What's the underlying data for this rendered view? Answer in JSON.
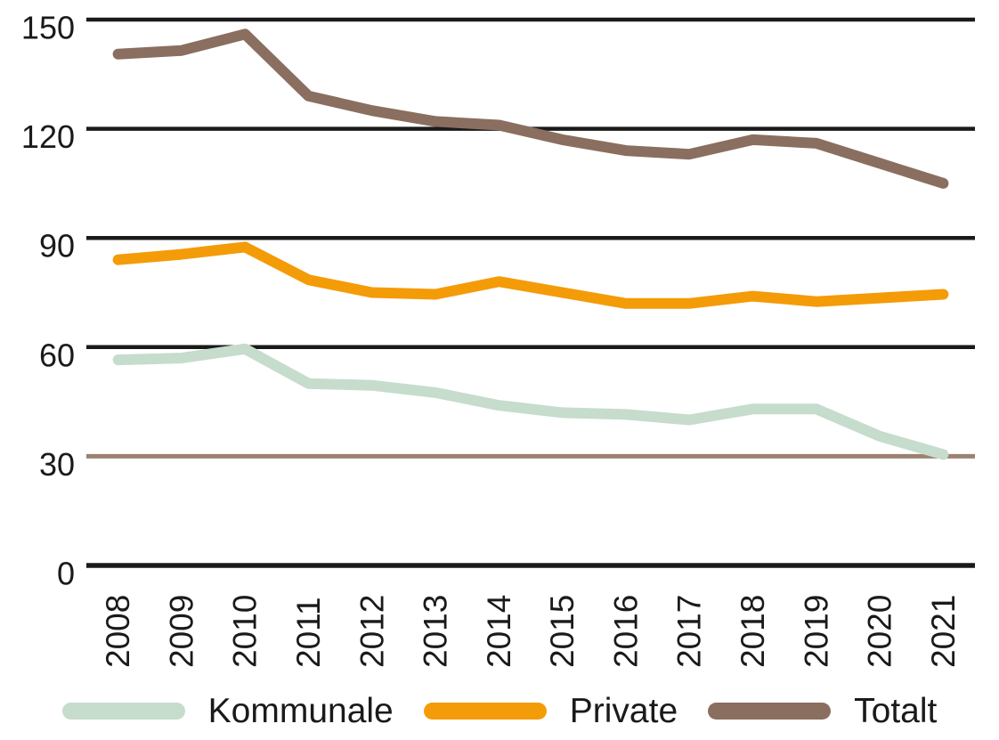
{
  "chart_data": {
    "type": "line",
    "title": "",
    "xlabel": "",
    "ylabel": "",
    "x": [
      "2008",
      "2009",
      "2010",
      "2011",
      "2012",
      "2013",
      "2014",
      "2015",
      "2016",
      "2017",
      "2018",
      "2019",
      "2020",
      "2021"
    ],
    "series": [
      {
        "name": "Kommunale",
        "color": "#c6dccd",
        "values": [
          56.5,
          57,
          59.5,
          50,
          49.5,
          47.5,
          44,
          42,
          41.5,
          40,
          43,
          43,
          35.5,
          30.5
        ]
      },
      {
        "name": "Private",
        "color": "#f49b08",
        "values": [
          84,
          85.5,
          87.5,
          78.5,
          75,
          74.5,
          78,
          75,
          72,
          72,
          74,
          72.5,
          73.5,
          74.5
        ]
      },
      {
        "name": "Totalt",
        "color": "#8a6e5f",
        "values": [
          140.5,
          141.5,
          146,
          129,
          125,
          122,
          121,
          117,
          114,
          113,
          117,
          116,
          110.5,
          105
        ]
      }
    ],
    "ylim": [
      0,
      150
    ],
    "yticks": [
      0,
      30,
      60,
      90,
      120,
      150
    ],
    "grid": "horizontal-only",
    "legend_position": "bottom",
    "colors": {
      "gridline": "#1a1a1a",
      "gridline_30": "#9c8271",
      "axis_baseline": "#1a1a1a",
      "tick_text": "#1a1a1a",
      "background": "#ffffff"
    }
  }
}
